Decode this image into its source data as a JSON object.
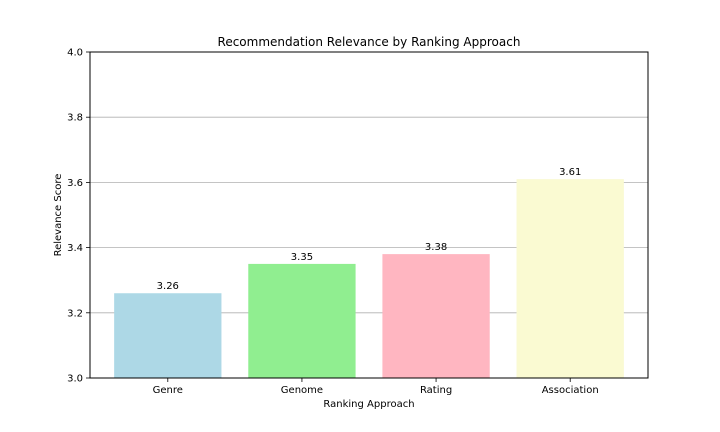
{
  "chart_data": {
    "type": "bar",
    "title": "Recommendation Relevance by Ranking Approach",
    "xlabel": "Ranking Approach",
    "ylabel": "Relevance Score",
    "categories": [
      "Genre",
      "Genome",
      "Rating",
      "Association"
    ],
    "values": [
      3.26,
      3.35,
      3.38,
      3.61
    ],
    "data_labels": [
      "3.26",
      "3.35",
      "3.38",
      "3.61"
    ],
    "colors": [
      "#add8e6",
      "#90ee90",
      "#ffb6c1",
      "#fafad2"
    ],
    "ylim": [
      3.0,
      4.0
    ],
    "yticks": [
      3.0,
      3.2,
      3.4,
      3.6,
      3.8,
      4.0
    ],
    "ytick_labels": [
      "3.0",
      "3.2",
      "3.4",
      "3.6",
      "3.8",
      "4.0"
    ],
    "grid": "y-axis",
    "legend": "none"
  }
}
